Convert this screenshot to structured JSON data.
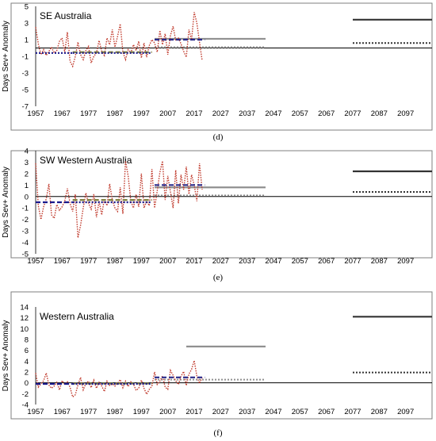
{
  "chart_data": [
    {
      "panel": "(d)",
      "type": "line",
      "title": "SE Australia",
      "ylabel": "Days Sev+ Anomaly",
      "ylim": [
        -7,
        5
      ],
      "yticks": [
        5,
        3,
        1,
        -1,
        -3,
        -5,
        -7
      ],
      "xlim": [
        1957,
        2107
      ],
      "xticks": [
        1957,
        1967,
        1977,
        1987,
        1997,
        2007,
        2017,
        2027,
        2037,
        2047,
        2057,
        2067,
        2077,
        2087,
        2097
      ],
      "observed": {
        "x": [
          1957,
          1958,
          1959,
          1960,
          1961,
          1962,
          1963,
          1964,
          1965,
          1966,
          1967,
          1968,
          1969,
          1970,
          1971,
          1972,
          1973,
          1974,
          1975,
          1976,
          1977,
          1978,
          1979,
          1980,
          1981,
          1982,
          1983,
          1984,
          1985,
          1986,
          1987,
          1988,
          1989,
          1990,
          1991,
          1992,
          1993,
          1994,
          1995,
          1996,
          1997,
          1998,
          1999,
          2000,
          2001,
          2002,
          2003,
          2004,
          2005,
          2006,
          2007,
          2008,
          2009,
          2010,
          2011,
          2012,
          2013,
          2014,
          2015,
          2016,
          2017,
          2018,
          2019,
          2020
        ],
        "values": [
          2.5,
          0.5,
          -0.8,
          -0.2,
          -0.9,
          -0.4,
          0.1,
          -0.6,
          -0.3,
          0.8,
          1.2,
          -0.5,
          1.9,
          -1.6,
          -2.2,
          -1.0,
          0.7,
          -0.8,
          -1.4,
          -0.3,
          0.2,
          -1.8,
          -1.0,
          -0.6,
          0.9,
          -0.4,
          -0.9,
          1.2,
          0.4,
          2.2,
          0.1,
          1.4,
          2.9,
          -0.5,
          -1.4,
          -0.2,
          -0.6,
          0.4,
          -0.3,
          0.8,
          -1.2,
          0.6,
          -1.1,
          0.3,
          1.0,
          0.6,
          -0.5,
          2.1,
          0.4,
          1.7,
          -0.8,
          1.5,
          2.6,
          0.9,
          1.2,
          0.5,
          -0.4,
          -1.1,
          2.2,
          1.0,
          4.3,
          3.0,
          0.7,
          -1.5
        ]
      },
      "period_means": [
        {
          "x": [
            1957,
            1971
          ],
          "y": -0.6,
          "style": "dotted",
          "color": "#1a1a8c"
        },
        {
          "x": [
            1971,
            2001
          ],
          "y": -0.5,
          "style": "dashed",
          "color": "#7f7f3f"
        },
        {
          "x": [
            1971,
            2001
          ],
          "y": -0.6,
          "style": "dotted",
          "color": "#1a1a8c"
        },
        {
          "x": [
            2002,
            2021
          ],
          "y": 1.0,
          "style": "dashed",
          "color": "#2a2a8a"
        }
      ],
      "projections": [
        {
          "x": [
            2002,
            2044
          ],
          "y": 1.1,
          "style": "solid",
          "color": "#909090"
        },
        {
          "x": [
            2002,
            2044
          ],
          "y": 0.1,
          "style": "dotted",
          "color": "#909090"
        },
        {
          "x": [
            2077,
            2107
          ],
          "y": 3.4,
          "style": "solid",
          "color": "#333333"
        },
        {
          "x": [
            2077,
            2107
          ],
          "y": 0.6,
          "style": "dotted",
          "color": "#333333"
        }
      ],
      "caption": "(d)"
    },
    {
      "panel": "(e)",
      "type": "line",
      "title": "SW Western Australia",
      "ylabel": "Days Sev+ Anomaly",
      "ylim": [
        -5,
        4
      ],
      "yticks": [
        4,
        3,
        2,
        1,
        0,
        -1,
        -2,
        -3,
        -4,
        -5
      ],
      "xlim": [
        1957,
        2107
      ],
      "xticks": [
        1957,
        1967,
        1977,
        1987,
        1997,
        2007,
        2017,
        2027,
        2037,
        2047,
        2057,
        2067,
        2077,
        2087,
        2097
      ],
      "observed": {
        "x": [
          1957,
          1958,
          1959,
          1960,
          1961,
          1962,
          1963,
          1964,
          1965,
          1966,
          1967,
          1968,
          1969,
          1970,
          1971,
          1972,
          1973,
          1974,
          1975,
          1976,
          1977,
          1978,
          1979,
          1980,
          1981,
          1982,
          1983,
          1984,
          1985,
          1986,
          1987,
          1988,
          1989,
          1990,
          1991,
          1992,
          1993,
          1994,
          1995,
          1996,
          1997,
          1998,
          1999,
          2000,
          2001,
          2002,
          2003,
          2004,
          2005,
          2006,
          2007,
          2008,
          2009,
          2010,
          2011,
          2012,
          2013,
          2014,
          2015,
          2016,
          2017,
          2018,
          2019,
          2020
        ],
        "values": [
          2.9,
          -0.8,
          -2.0,
          -0.9,
          -0.2,
          1.1,
          -1.6,
          -1.9,
          -0.7,
          -1.2,
          -0.9,
          -0.4,
          0.7,
          -0.6,
          -1.3,
          0.2,
          -3.6,
          -2.5,
          -1.0,
          0.3,
          -0.6,
          -1.1,
          0.2,
          -1.8,
          -0.4,
          -1.6,
          -0.2,
          -0.8,
          1.1,
          -0.3,
          -1.0,
          -1.3,
          0.8,
          -1.5,
          3.1,
          1.8,
          -0.4,
          -1.0,
          0.2,
          -0.9,
          2.0,
          -1.0,
          -0.4,
          -0.8,
          2.4,
          -1.0,
          0.5,
          2.1,
          3.1,
          -0.3,
          1.8,
          0.4,
          -1.0,
          2.3,
          -0.6,
          1.9,
          0.6,
          2.6,
          0.2,
          1.9,
          1.0,
          -0.4,
          2.9,
          0.6
        ]
      },
      "period_means": [
        {
          "x": [
            1957,
            1971
          ],
          "y": -0.5,
          "style": "dashed",
          "color": "#1a1a8c"
        },
        {
          "x": [
            1971,
            2001
          ],
          "y": -0.3,
          "style": "dashed",
          "color": "#7f7f3f"
        },
        {
          "x": [
            1971,
            2001
          ],
          "y": -0.5,
          "style": "dotted",
          "color": "#1a1a8c"
        },
        {
          "x": [
            2002,
            2021
          ],
          "y": 1.0,
          "style": "dashed",
          "color": "#2a2a8a"
        }
      ],
      "projections": [
        {
          "x": [
            2002,
            2044
          ],
          "y": 0.8,
          "style": "solid",
          "color": "#909090"
        },
        {
          "x": [
            2002,
            2044
          ],
          "y": 0.1,
          "style": "dotted",
          "color": "#909090"
        },
        {
          "x": [
            2077,
            2107
          ],
          "y": 2.2,
          "style": "solid",
          "color": "#333333"
        },
        {
          "x": [
            2077,
            2107
          ],
          "y": 0.4,
          "style": "dotted",
          "color": "#333333"
        }
      ],
      "caption": "(e)"
    },
    {
      "panel": "(f)",
      "type": "line",
      "title": "Western Australia",
      "ylabel": "Days Sev+ Anomaly",
      "ylim": [
        -4,
        14
      ],
      "yticks": [
        14,
        12,
        10,
        8,
        6,
        4,
        2,
        0,
        -2,
        -4
      ],
      "xlim": [
        1957,
        2107
      ],
      "xticks": [
        1957,
        1967,
        1977,
        1987,
        1997,
        2007,
        2017,
        2027,
        2037,
        2047,
        2057,
        2067,
        2077,
        2087,
        2097
      ],
      "observed": {
        "x": [
          1957,
          1958,
          1959,
          1960,
          1961,
          1962,
          1963,
          1964,
          1965,
          1966,
          1967,
          1968,
          1969,
          1970,
          1971,
          1972,
          1973,
          1974,
          1975,
          1976,
          1977,
          1978,
          1979,
          1980,
          1981,
          1982,
          1983,
          1984,
          1985,
          1986,
          1987,
          1988,
          1989,
          1990,
          1991,
          1992,
          1993,
          1994,
          1995,
          1996,
          1997,
          1998,
          1999,
          2000,
          2001,
          2002,
          2003,
          2004,
          2005,
          2006,
          2007,
          2008,
          2009,
          2010,
          2011,
          2012,
          2013,
          2014,
          2015,
          2016,
          2017,
          2018,
          2019,
          2020
        ],
        "values": [
          1.8,
          -0.8,
          -0.2,
          0.4,
          1.8,
          -0.4,
          -1.0,
          -0.6,
          0.1,
          -1.3,
          0.4,
          -0.3,
          0.2,
          -0.8,
          -2.6,
          -2.2,
          -0.4,
          1.0,
          -1.3,
          -0.1,
          0.3,
          -0.9,
          0.5,
          -1.0,
          0.1,
          -0.6,
          -1.6,
          0.3,
          -0.5,
          -0.2,
          -0.6,
          -0.1,
          0.6,
          -0.9,
          0.3,
          -0.7,
          0.2,
          -0.2,
          -1.4,
          -1.0,
          0.5,
          -1.0,
          -2.1,
          -1.2,
          -0.6,
          2.0,
          -0.3,
          0.3,
          1.3,
          -0.8,
          -1.2,
          2.3,
          1.4,
          0.4,
          -0.3,
          1.2,
          2.1,
          -0.5,
          1.6,
          2.5,
          4.1,
          1.2,
          -0.1,
          1.0
        ]
      },
      "period_means": [
        {
          "x": [
            1957,
            1971
          ],
          "y": -0.2,
          "style": "dashed",
          "color": "#1a1a8c"
        },
        {
          "x": [
            1971,
            2001
          ],
          "y": -0.1,
          "style": "dashed",
          "color": "#7f7f3f"
        },
        {
          "x": [
            1971,
            2001
          ],
          "y": -0.2,
          "style": "dotted",
          "color": "#1a1a8c"
        },
        {
          "x": [
            2002,
            2021
          ],
          "y": 1.0,
          "style": "dashed",
          "color": "#2a2a8a"
        }
      ],
      "projections": [
        {
          "x": [
            2014,
            2044
          ],
          "y": 6.7,
          "style": "solid",
          "color": "#909090"
        },
        {
          "x": [
            2002,
            2044
          ],
          "y": 0.6,
          "style": "dotted",
          "color": "#909090"
        },
        {
          "x": [
            2077,
            2107
          ],
          "y": 12.2,
          "style": "solid",
          "color": "#333333"
        },
        {
          "x": [
            2077,
            2107
          ],
          "y": 1.9,
          "style": "dotted",
          "color": "#333333"
        }
      ],
      "caption": "(f)"
    }
  ],
  "colors": {
    "observed_line": "#c0392b",
    "axis": "#000000",
    "frame": "#7f7f7f"
  }
}
